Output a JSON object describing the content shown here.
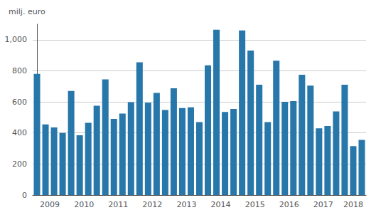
{
  "chart_data": {
    "type": "bar",
    "ylabel": "milj. euro",
    "categories": [
      "2009",
      null,
      null,
      null,
      "2010",
      null,
      null,
      null,
      "2011",
      null,
      null,
      null,
      "2012",
      null,
      null,
      null,
      "2013",
      null,
      null,
      null,
      "2014",
      null,
      null,
      null,
      "2015",
      null,
      null,
      null,
      "2016",
      null,
      null,
      null,
      "2017",
      null,
      null,
      null,
      "2018",
      null,
      null
    ],
    "values": [
      780,
      455,
      435,
      400,
      670,
      385,
      465,
      575,
      745,
      490,
      525,
      598,
      855,
      595,
      658,
      548,
      688,
      560,
      565,
      470,
      835,
      1065,
      535,
      555,
      1060,
      930,
      710,
      470,
      865,
      600,
      605,
      775,
      705,
      430,
      445,
      538,
      710,
      315,
      355
    ],
    "color": "#2777aa",
    "ylim": [
      0,
      1100
    ],
    "yticks": [
      0,
      200,
      400,
      600,
      800,
      1000
    ],
    "grid": true
  }
}
